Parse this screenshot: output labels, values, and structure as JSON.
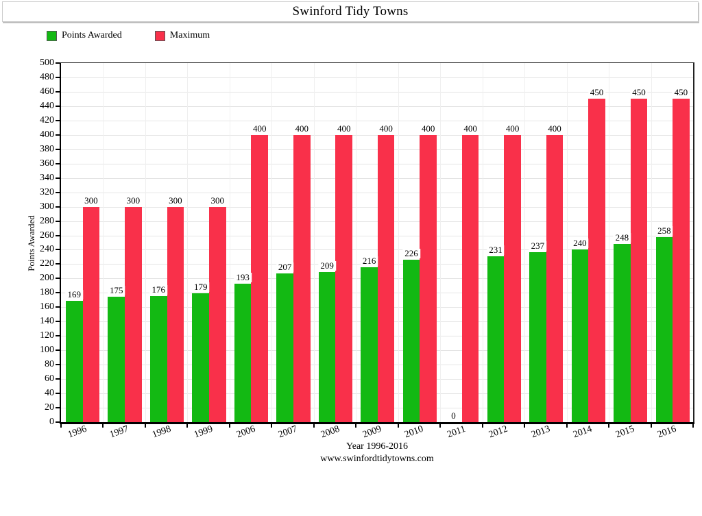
{
  "window": {
    "title": "Swinford Tidy Towns"
  },
  "legend": {
    "items": [
      {
        "label": "Points Awarded",
        "color": "#13b913"
      },
      {
        "label": "Maximum",
        "color": "#f9304a"
      }
    ]
  },
  "chart_data": {
    "type": "bar",
    "title": "Swinford Tidy Towns",
    "categories": [
      "1996",
      "1997",
      "1998",
      "1999",
      "2006",
      "2007",
      "2008",
      "2009",
      "2010",
      "2011",
      "2012",
      "2013",
      "2014",
      "2015",
      "2016"
    ],
    "series": [
      {
        "name": "Points Awarded",
        "color": "#13b913",
        "values": [
          169,
          175,
          176,
          179,
          193,
          207,
          209,
          216,
          226,
          0,
          231,
          237,
          240,
          248,
          258
        ]
      },
      {
        "name": "Maximum",
        "color": "#f9304a",
        "values": [
          300,
          300,
          300,
          300,
          400,
          400,
          400,
          400,
          400,
          400,
          400,
          400,
          450,
          450,
          450
        ]
      }
    ],
    "xlabel": "Year 1996-2016",
    "ylabel": "Points Awarded",
    "ylim": [
      0,
      500
    ],
    "ytick_step": 20,
    "grid": true,
    "legend_position": "top-left",
    "bar_labels_shown": true
  },
  "footer": {
    "url": "www.swinfordtidytowns.com"
  }
}
